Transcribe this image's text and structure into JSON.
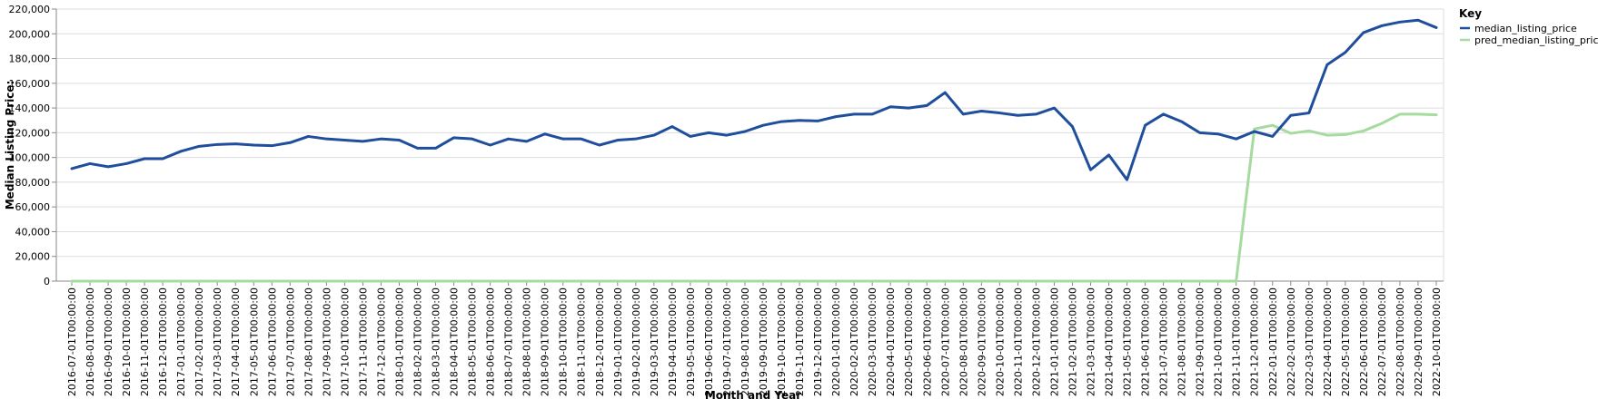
{
  "chart_data": {
    "type": "line",
    "xlabel": "Month and Year",
    "ylabel": "Median Listing Price:",
    "ylim": [
      0,
      220000
    ],
    "yticks": [
      0,
      20000,
      40000,
      60000,
      80000,
      100000,
      120000,
      140000,
      160000,
      180000,
      200000,
      220000
    ],
    "ytick_labels": [
      "0",
      "20,000",
      "40,000",
      "60,000",
      "80,000",
      "100,000",
      "120,000",
      "140,000",
      "160,000",
      "180,000",
      "200,000",
      "220,000"
    ],
    "grid": true,
    "legend": {
      "title": "Key",
      "placement": "top-right"
    },
    "x": [
      "2016-07-01T00:00:00",
      "2016-08-01T00:00:00",
      "2016-09-01T00:00:00",
      "2016-10-01T00:00:00",
      "2016-11-01T00:00:00",
      "2016-12-01T00:00:00",
      "2017-01-01T00:00:00",
      "2017-02-01T00:00:00",
      "2017-03-01T00:00:00",
      "2017-04-01T00:00:00",
      "2017-05-01T00:00:00",
      "2017-06-01T00:00:00",
      "2017-07-01T00:00:00",
      "2017-08-01T00:00:00",
      "2017-09-01T00:00:00",
      "2017-10-01T00:00:00",
      "2017-11-01T00:00:00",
      "2017-12-01T00:00:00",
      "2018-01-01T00:00:00",
      "2018-02-01T00:00:00",
      "2018-03-01T00:00:00",
      "2018-04-01T00:00:00",
      "2018-05-01T00:00:00",
      "2018-06-01T00:00:00",
      "2018-07-01T00:00:00",
      "2018-08-01T00:00:00",
      "2018-09-01T00:00:00",
      "2018-10-01T00:00:00",
      "2018-11-01T00:00:00",
      "2018-12-01T00:00:00",
      "2019-01-01T00:00:00",
      "2019-02-01T00:00:00",
      "2019-03-01T00:00:00",
      "2019-04-01T00:00:00",
      "2019-05-01T00:00:00",
      "2019-06-01T00:00:00",
      "2019-07-01T00:00:00",
      "2019-08-01T00:00:00",
      "2019-09-01T00:00:00",
      "2019-10-01T00:00:00",
      "2019-11-01T00:00:00",
      "2019-12-01T00:00:00",
      "2020-01-01T00:00:00",
      "2020-02-01T00:00:00",
      "2020-03-01T00:00:00",
      "2020-04-01T00:00:00",
      "2020-05-01T00:00:00",
      "2020-06-01T00:00:00",
      "2020-07-01T00:00:00",
      "2020-08-01T00:00:00",
      "2020-09-01T00:00:00",
      "2020-10-01T00:00:00",
      "2020-11-01T00:00:00",
      "2020-12-01T00:00:00",
      "2021-01-01T00:00:00",
      "2021-02-01T00:00:00",
      "2021-03-01T00:00:00",
      "2021-04-01T00:00:00",
      "2021-05-01T00:00:00",
      "2021-06-01T00:00:00",
      "2021-07-01T00:00:00",
      "2021-08-01T00:00:00",
      "2021-09-01T00:00:00",
      "2021-10-01T00:00:00",
      "2021-11-01T00:00:00",
      "2021-12-01T00:00:00",
      "2022-01-01T00:00:00",
      "2022-02-01T00:00:00",
      "2022-03-01T00:00:00",
      "2022-04-01T00:00:00",
      "2022-05-01T00:00:00",
      "2022-06-01T00:00:00",
      "2022-07-01T00:00:00",
      "2022-08-01T00:00:00",
      "2022-09-01T00:00:00",
      "2022-10-01T00:00:00"
    ],
    "series": [
      {
        "name": "median_listing_price",
        "color": "#1f4e9c",
        "values": [
          91000,
          95000,
          92500,
          95000,
          99000,
          99000,
          105000,
          109000,
          110500,
          111000,
          110000,
          109500,
          112000,
          117000,
          115000,
          114000,
          113000,
          115000,
          114000,
          107500,
          107500,
          116000,
          115000,
          110000,
          115000,
          113000,
          119000,
          115000,
          115000,
          110000,
          114000,
          115000,
          118000,
          125000,
          117000,
          120000,
          118000,
          121000,
          126000,
          129000,
          130000,
          129500,
          133000,
          135000,
          135000,
          141000,
          140000,
          142000,
          152500,
          135000,
          137500,
          136000,
          134000,
          135000,
          140000,
          125000,
          90000,
          102000,
          82000,
          126000,
          135000,
          129000,
          120000,
          119000,
          115000,
          121000,
          117000,
          134000,
          136000,
          175000,
          185000,
          201000,
          206500,
          209500,
          211000,
          205000
        ]
      },
      {
        "name": "pred_median_listing_price",
        "color": "#a6dba0",
        "values": [
          0,
          0,
          0,
          0,
          0,
          0,
          0,
          0,
          0,
          0,
          0,
          0,
          0,
          0,
          0,
          0,
          0,
          0,
          0,
          0,
          0,
          0,
          0,
          0,
          0,
          0,
          0,
          0,
          0,
          0,
          0,
          0,
          0,
          0,
          0,
          0,
          0,
          0,
          0,
          0,
          0,
          0,
          0,
          0,
          0,
          0,
          0,
          0,
          0,
          0,
          0,
          0,
          0,
          0,
          0,
          0,
          0,
          0,
          0,
          0,
          0,
          0,
          0,
          0,
          0,
          123000,
          126000,
          119500,
          121500,
          118000,
          118500,
          121500,
          127500,
          135000,
          135000,
          134500
        ]
      }
    ]
  }
}
